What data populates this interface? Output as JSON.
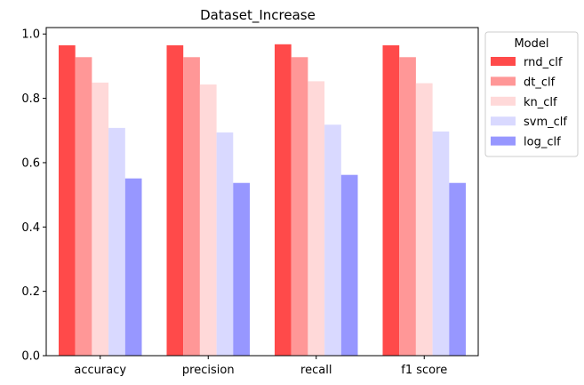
{
  "chart_data": {
    "type": "bar",
    "title": "Dataset_Increase",
    "xlabel": "",
    "ylabel": "",
    "categories": [
      "accuracy",
      "precision",
      "recall",
      "f1 score"
    ],
    "ylim": [
      0,
      1.02
    ],
    "yticks": [
      "0.0",
      "0.2",
      "0.4",
      "0.6",
      "0.8",
      "1.0"
    ],
    "grid": false,
    "legend_title": "Model",
    "legend_placement": "outside-top-right",
    "series": [
      {
        "name": "rnd_clf",
        "color": "#ff4a4a",
        "values": [
          0.965,
          0.965,
          0.968,
          0.965
        ]
      },
      {
        "name": "dt_clf",
        "color": "#ff9797",
        "values": [
          0.928,
          0.928,
          0.928,
          0.928
        ]
      },
      {
        "name": "kn_clf",
        "color": "#ffd9d9",
        "values": [
          0.849,
          0.843,
          0.853,
          0.847
        ]
      },
      {
        "name": "svm_clf",
        "color": "#d9d9ff",
        "values": [
          0.708,
          0.694,
          0.718,
          0.697
        ]
      },
      {
        "name": "log_clf",
        "color": "#9797ff",
        "values": [
          0.551,
          0.537,
          0.562,
          0.537
        ]
      }
    ]
  }
}
